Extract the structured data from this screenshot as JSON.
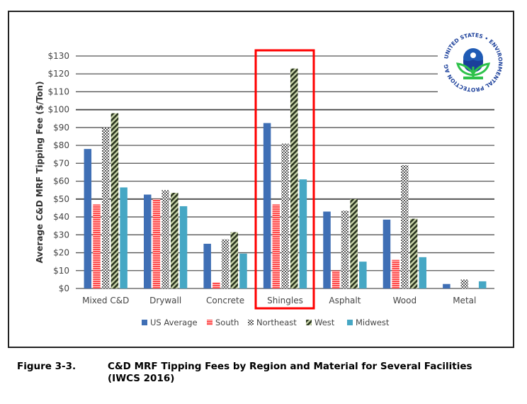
{
  "chart_data": {
    "type": "bar",
    "ylabel": "Average C&D MRF Tipping Fee ($/Ton)",
    "xlabel": "",
    "ylim": [
      0,
      130
    ],
    "yticks": [
      "$0",
      "$10",
      "$20",
      "$30",
      "$40",
      "$50",
      "$60",
      "$70",
      "$80",
      "$90",
      "$100",
      "$110",
      "$120",
      "$130"
    ],
    "grid": true,
    "legend_position": "bottom",
    "categories": [
      "Mixed C&D",
      "Drywall",
      "Concrete",
      "Shingles",
      "Asphalt",
      "Wood",
      "Metal"
    ],
    "series": [
      {
        "name": "US Average",
        "color": "#3f6fb5",
        "pattern": "solid",
        "values": [
          78,
          52.5,
          25,
          92.5,
          43,
          38.5,
          2.5
        ]
      },
      {
        "name": "South",
        "color": "#ff4d4d",
        "pattern": "hstripe",
        "values": [
          47,
          50,
          3.5,
          47,
          10,
          16,
          0
        ]
      },
      {
        "name": "Northeast",
        "color": "#555555",
        "pattern": "check",
        "values": [
          90,
          55,
          27.5,
          81,
          43.5,
          69,
          5
        ]
      },
      {
        "name": "West",
        "color": "#3a4a2a",
        "pattern": "diag",
        "values": [
          98,
          53.5,
          31.5,
          123,
          50,
          39,
          0
        ]
      },
      {
        "name": "Midwest",
        "color": "#46a7c4",
        "pattern": "solid",
        "values": [
          56.5,
          46,
          19.5,
          61,
          15,
          17.5,
          4
        ]
      }
    ],
    "highlight_category": "Shingles"
  },
  "caption": {
    "number": "Figure 3-3.",
    "line1": "C&D MRF Tipping Fees by Region and Material for Several Facilities",
    "line2": "(IWCS 2016)"
  },
  "logo": {
    "text": "UNITED STATES • ENVIRONMENTAL PROTECTION AGENCY •"
  },
  "colors": {
    "highlight": "#ff0000",
    "grid": "#555555"
  }
}
